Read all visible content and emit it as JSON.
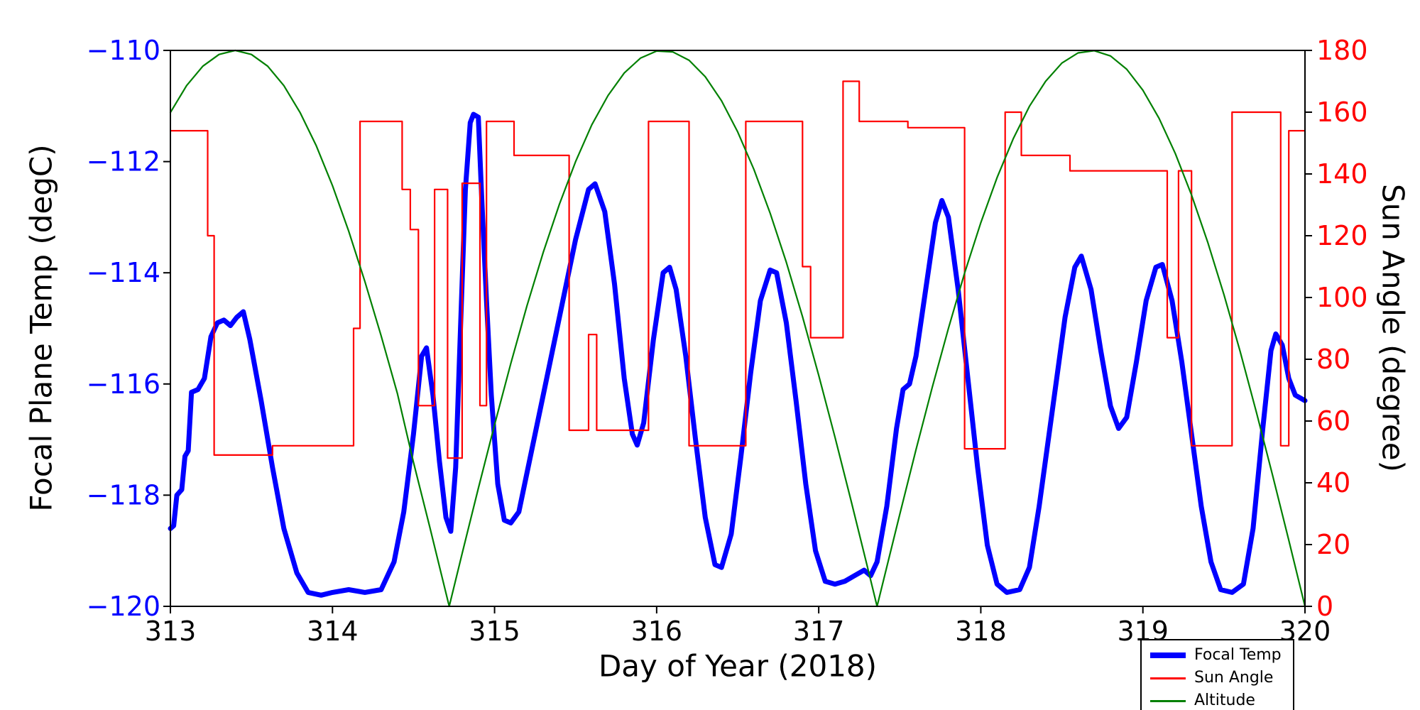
{
  "figure": {
    "background": "#ffffff"
  },
  "chart_data": {
    "type": "line",
    "title": "",
    "xlabel": "Day of Year (2018)",
    "ylabel_left": "Focal Plane Temp (degC)",
    "ylabel_right": "Sun Angle (degree)",
    "x_range": [
      313,
      320
    ],
    "x_ticks": [
      313,
      314,
      315,
      316,
      317,
      318,
      319,
      320
    ],
    "y_left_range": [
      -120,
      -110
    ],
    "y_left_ticks": [
      -110,
      -112,
      -114,
      -116,
      -118,
      -120
    ],
    "y_right_range": [
      0,
      180
    ],
    "y_right_ticks": [
      0,
      20,
      40,
      60,
      80,
      100,
      120,
      140,
      160,
      180
    ],
    "axis_colors": {
      "left_ticks": "#0000ff",
      "right_ticks": "#ff0000",
      "x_ticks": "#000000",
      "frame": "#000000"
    },
    "grid": false,
    "legend": {
      "position": "lower-right-outside",
      "border_color": "#000000"
    },
    "series": [
      {
        "name": "Focal Temp",
        "axis": "left",
        "color": "#0000ff",
        "line_width": 7,
        "style": "solid",
        "points": [
          [
            313.0,
            -118.6
          ],
          [
            313.02,
            -118.55
          ],
          [
            313.04,
            -118.0
          ],
          [
            313.07,
            -117.9
          ],
          [
            313.09,
            -117.3
          ],
          [
            313.11,
            -117.2
          ],
          [
            313.13,
            -116.15
          ],
          [
            313.17,
            -116.1
          ],
          [
            313.21,
            -115.9
          ],
          [
            313.25,
            -115.15
          ],
          [
            313.29,
            -114.9
          ],
          [
            313.33,
            -114.85
          ],
          [
            313.37,
            -114.95
          ],
          [
            313.41,
            -114.8
          ],
          [
            313.45,
            -114.7
          ],
          [
            313.49,
            -115.2
          ],
          [
            313.56,
            -116.3
          ],
          [
            313.63,
            -117.5
          ],
          [
            313.7,
            -118.6
          ],
          [
            313.78,
            -119.4
          ],
          [
            313.85,
            -119.75
          ],
          [
            313.93,
            -119.8
          ],
          [
            314.0,
            -119.75
          ],
          [
            314.1,
            -119.7
          ],
          [
            314.2,
            -119.75
          ],
          [
            314.3,
            -119.7
          ],
          [
            314.38,
            -119.2
          ],
          [
            314.44,
            -118.3
          ],
          [
            314.5,
            -116.9
          ],
          [
            314.55,
            -115.5
          ],
          [
            314.58,
            -115.35
          ],
          [
            314.62,
            -116.2
          ],
          [
            314.66,
            -117.4
          ],
          [
            314.7,
            -118.4
          ],
          [
            314.73,
            -118.65
          ],
          [
            314.76,
            -117.5
          ],
          [
            314.79,
            -115.0
          ],
          [
            314.82,
            -112.5
          ],
          [
            314.85,
            -111.3
          ],
          [
            314.87,
            -111.15
          ],
          [
            314.9,
            -111.2
          ],
          [
            314.92,
            -112.6
          ],
          [
            314.95,
            -114.5
          ],
          [
            314.98,
            -116.2
          ],
          [
            315.02,
            -117.8
          ],
          [
            315.06,
            -118.45
          ],
          [
            315.1,
            -118.5
          ],
          [
            315.15,
            -118.3
          ],
          [
            315.2,
            -117.6
          ],
          [
            315.3,
            -116.2
          ],
          [
            315.4,
            -114.8
          ],
          [
            315.5,
            -113.4
          ],
          [
            315.58,
            -112.5
          ],
          [
            315.62,
            -112.4
          ],
          [
            315.68,
            -112.9
          ],
          [
            315.74,
            -114.2
          ],
          [
            315.8,
            -115.9
          ],
          [
            315.85,
            -116.9
          ],
          [
            315.88,
            -117.1
          ],
          [
            315.92,
            -116.7
          ],
          [
            315.98,
            -115.2
          ],
          [
            316.04,
            -114.0
          ],
          [
            316.08,
            -113.9
          ],
          [
            316.12,
            -114.3
          ],
          [
            316.18,
            -115.5
          ],
          [
            316.24,
            -117.0
          ],
          [
            316.3,
            -118.4
          ],
          [
            316.36,
            -119.25
          ],
          [
            316.4,
            -119.3
          ],
          [
            316.46,
            -118.7
          ],
          [
            316.52,
            -117.3
          ],
          [
            316.58,
            -115.8
          ],
          [
            316.64,
            -114.5
          ],
          [
            316.7,
            -113.95
          ],
          [
            316.74,
            -114.0
          ],
          [
            316.8,
            -114.9
          ],
          [
            316.86,
            -116.3
          ],
          [
            316.92,
            -117.8
          ],
          [
            316.98,
            -119.0
          ],
          [
            317.04,
            -119.55
          ],
          [
            317.1,
            -119.6
          ],
          [
            317.16,
            -119.55
          ],
          [
            317.22,
            -119.45
          ],
          [
            317.28,
            -119.35
          ],
          [
            317.32,
            -119.45
          ],
          [
            317.36,
            -119.2
          ],
          [
            317.42,
            -118.2
          ],
          [
            317.48,
            -116.8
          ],
          [
            317.52,
            -116.1
          ],
          [
            317.56,
            -116.0
          ],
          [
            317.6,
            -115.5
          ],
          [
            317.66,
            -114.3
          ],
          [
            317.72,
            -113.1
          ],
          [
            317.76,
            -112.7
          ],
          [
            317.8,
            -113.0
          ],
          [
            317.86,
            -114.3
          ],
          [
            317.92,
            -115.9
          ],
          [
            317.98,
            -117.5
          ],
          [
            318.04,
            -118.9
          ],
          [
            318.1,
            -119.6
          ],
          [
            318.16,
            -119.75
          ],
          [
            318.24,
            -119.7
          ],
          [
            318.3,
            -119.3
          ],
          [
            318.36,
            -118.2
          ],
          [
            318.44,
            -116.5
          ],
          [
            318.52,
            -114.8
          ],
          [
            318.58,
            -113.9
          ],
          [
            318.62,
            -113.7
          ],
          [
            318.68,
            -114.3
          ],
          [
            318.74,
            -115.4
          ],
          [
            318.8,
            -116.4
          ],
          [
            318.85,
            -116.8
          ],
          [
            318.9,
            -116.6
          ],
          [
            318.96,
            -115.6
          ],
          [
            319.02,
            -114.5
          ],
          [
            319.08,
            -113.9
          ],
          [
            319.12,
            -113.85
          ],
          [
            319.18,
            -114.5
          ],
          [
            319.24,
            -115.6
          ],
          [
            319.3,
            -116.9
          ],
          [
            319.36,
            -118.2
          ],
          [
            319.42,
            -119.2
          ],
          [
            319.48,
            -119.7
          ],
          [
            319.55,
            -119.75
          ],
          [
            319.62,
            -119.6
          ],
          [
            319.68,
            -118.6
          ],
          [
            319.74,
            -116.8
          ],
          [
            319.79,
            -115.4
          ],
          [
            319.82,
            -115.1
          ],
          [
            319.86,
            -115.3
          ],
          [
            319.9,
            -115.9
          ],
          [
            319.94,
            -116.2
          ],
          [
            320.0,
            -116.3
          ]
        ]
      },
      {
        "name": "Sun Angle",
        "axis": "right",
        "color": "#ff0000",
        "line_width": 2.2,
        "style": "step",
        "points": [
          [
            313.0,
            154
          ],
          [
            313.23,
            120
          ],
          [
            313.27,
            49
          ],
          [
            313.63,
            52
          ],
          [
            314.13,
            90
          ],
          [
            314.17,
            157
          ],
          [
            314.43,
            135
          ],
          [
            314.48,
            122
          ],
          [
            314.53,
            65
          ],
          [
            314.63,
            135
          ],
          [
            314.71,
            48
          ],
          [
            314.8,
            137
          ],
          [
            314.91,
            65
          ],
          [
            314.95,
            157
          ],
          [
            315.12,
            146
          ],
          [
            315.46,
            57
          ],
          [
            315.58,
            88
          ],
          [
            315.63,
            57
          ],
          [
            315.95,
            157
          ],
          [
            316.2,
            52
          ],
          [
            316.55,
            157
          ],
          [
            316.9,
            110
          ],
          [
            316.95,
            87
          ],
          [
            317.15,
            170
          ],
          [
            317.25,
            157
          ],
          [
            317.55,
            155
          ],
          [
            317.9,
            51
          ],
          [
            318.15,
            160
          ],
          [
            318.25,
            146
          ],
          [
            318.55,
            141
          ],
          [
            319.15,
            87
          ],
          [
            319.22,
            141
          ],
          [
            319.3,
            52
          ],
          [
            319.55,
            160
          ],
          [
            319.85,
            52
          ],
          [
            319.9,
            154
          ],
          [
            320.0,
            154
          ]
        ]
      },
      {
        "name": "Altitude",
        "axis": "right",
        "color": "#008000",
        "line_width": 2.2,
        "style": "solid",
        "points": [
          [
            313.0,
            159.9
          ],
          [
            313.1,
            168.6
          ],
          [
            313.2,
            174.9
          ],
          [
            313.3,
            178.7
          ],
          [
            313.4,
            180.0
          ],
          [
            313.5,
            178.7
          ],
          [
            313.6,
            174.9
          ],
          [
            313.7,
            168.6
          ],
          [
            313.8,
            159.9
          ],
          [
            313.9,
            149.1
          ],
          [
            314.0,
            136.2
          ],
          [
            314.1,
            121.5
          ],
          [
            314.2,
            105.2
          ],
          [
            314.3,
            87.6
          ],
          [
            314.4,
            69.0
          ],
          [
            314.5,
            46.6
          ],
          [
            314.6,
            25.7
          ],
          [
            314.7,
            4.3
          ],
          [
            314.72,
            0.0
          ],
          [
            314.8,
            17.1
          ],
          [
            314.9,
            38.2
          ],
          [
            315.0,
            58.8
          ],
          [
            315.1,
            78.6
          ],
          [
            315.2,
            97.3
          ],
          [
            315.3,
            114.6
          ],
          [
            315.4,
            130.2
          ],
          [
            315.5,
            144.0
          ],
          [
            315.6,
            155.9
          ],
          [
            315.7,
            165.4
          ],
          [
            315.8,
            172.7
          ],
          [
            315.9,
            177.5
          ],
          [
            316.0,
            179.8
          ],
          [
            316.1,
            179.5
          ],
          [
            316.2,
            176.8
          ],
          [
            316.3,
            171.5
          ],
          [
            316.4,
            163.7
          ],
          [
            316.5,
            153.6
          ],
          [
            316.6,
            141.5
          ],
          [
            316.7,
            127.3
          ],
          [
            316.8,
            111.4
          ],
          [
            316.9,
            93.8
          ],
          [
            317.0,
            74.8
          ],
          [
            317.1,
            54.8
          ],
          [
            317.2,
            34.1
          ],
          [
            317.3,
            12.9
          ],
          [
            317.36,
            0.0
          ],
          [
            317.5,
            29.8
          ],
          [
            317.6,
            50.7
          ],
          [
            317.7,
            70.8
          ],
          [
            317.8,
            90.0
          ],
          [
            317.9,
            107.9
          ],
          [
            318.0,
            124.2
          ],
          [
            318.1,
            138.8
          ],
          [
            318.2,
            151.4
          ],
          [
            318.3,
            161.9
          ],
          [
            318.4,
            170.0
          ],
          [
            318.5,
            175.9
          ],
          [
            318.6,
            179.2
          ],
          [
            318.7,
            179.9
          ],
          [
            318.8,
            178.2
          ],
          [
            318.9,
            173.9
          ],
          [
            319.0,
            167.1
          ],
          [
            319.1,
            158.0
          ],
          [
            319.2,
            146.6
          ],
          [
            319.3,
            133.2
          ],
          [
            319.4,
            117.9
          ],
          [
            319.5,
            100.9
          ],
          [
            319.6,
            82.5
          ],
          [
            319.7,
            62.9
          ],
          [
            319.8,
            42.5
          ],
          [
            319.9,
            21.4
          ],
          [
            320.0,
            0.0
          ]
        ]
      }
    ]
  }
}
